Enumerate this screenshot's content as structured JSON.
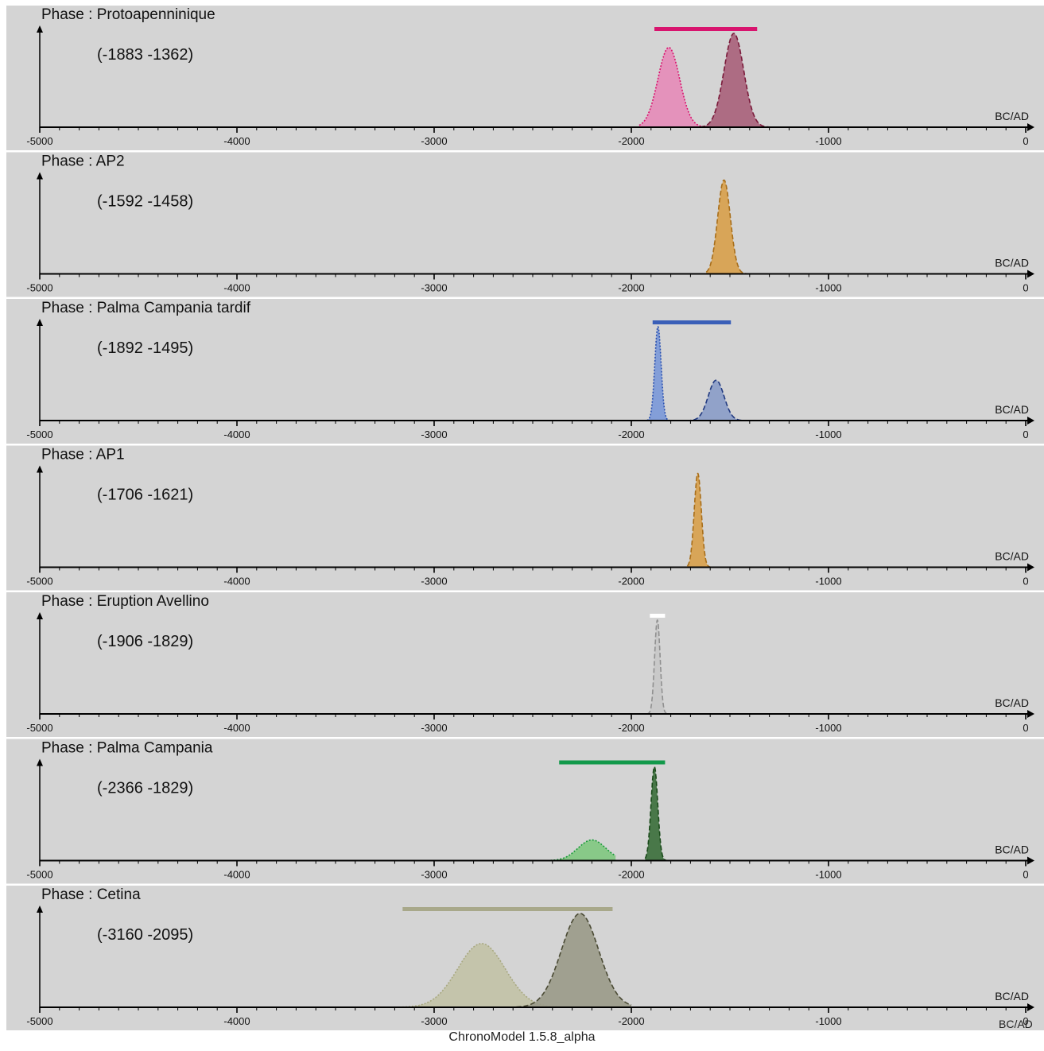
{
  "app_footer": "ChronoModel 1.5.8_alpha",
  "bottom_unit_label": "BC/AD",
  "chart_data": [
    {
      "type": "area",
      "title": "Phase : Protoapenninique",
      "interval_label": "(-1883 -1362)",
      "interval": [
        -1883,
        -1362
      ],
      "unit_label": "BC/AD",
      "xlim": [
        -5000,
        0
      ],
      "xticks": [
        -5000,
        -4000,
        -3000,
        -2000,
        -1000,
        0
      ],
      "bar_color": "#d8146e",
      "series": [
        {
          "role": "begin",
          "style": "dotted",
          "fill": "#e58bb8",
          "stroke": "#d8146e",
          "mean": -1810,
          "sd": 55,
          "height": 0.85,
          "range": [
            -1960,
            -1630
          ]
        },
        {
          "role": "end",
          "style": "dashed",
          "fill": "#a8607a",
          "stroke": "#7a1a3a",
          "mean": -1480,
          "sd": 50,
          "height": 1.0,
          "range": [
            -1650,
            -1100
          ]
        }
      ]
    },
    {
      "type": "area",
      "title": "Phase : AP2",
      "interval_label": "(-1592 -1458)",
      "interval": [
        -1592,
        -1458
      ],
      "unit_label": "BC/AD",
      "xlim": [
        -5000,
        0
      ],
      "xticks": [
        -5000,
        -4000,
        -3000,
        -2000,
        -1000,
        0
      ],
      "bar_color": null,
      "series": [
        {
          "role": "single",
          "style": "dashed",
          "fill": "#d8a04a",
          "stroke": "#a86e1a",
          "mean": -1530,
          "sd": 32,
          "height": 1.0,
          "range": [
            -1620,
            -1380
          ]
        }
      ]
    },
    {
      "type": "area",
      "title": "Phase : Palma Campania tardif",
      "interval_label": "(-1892 -1495)",
      "interval": [
        -1892,
        -1495
      ],
      "unit_label": "BC/AD",
      "xlim": [
        -5000,
        0
      ],
      "xticks": [
        -5000,
        -4000,
        -3000,
        -2000,
        -1000,
        0
      ],
      "bar_color": "#3a5fb8",
      "series": [
        {
          "role": "begin",
          "style": "dotted",
          "fill": "#7a98d8",
          "stroke": "#2a50b0",
          "mean": -1865,
          "sd": 16,
          "height": 1.0,
          "range": [
            -1920,
            -1810
          ]
        },
        {
          "role": "end",
          "style": "dashed",
          "fill": "#8a9cc8",
          "stroke": "#223a80",
          "mean": -1570,
          "sd": 40,
          "height": 0.43,
          "range": [
            -1720,
            -1380
          ]
        }
      ]
    },
    {
      "type": "area",
      "title": "Phase : AP1",
      "interval_label": "(-1706 -1621)",
      "interval": [
        -1706,
        -1621
      ],
      "unit_label": "BC/AD",
      "xlim": [
        -5000,
        0
      ],
      "xticks": [
        -5000,
        -4000,
        -3000,
        -2000,
        -1000,
        0
      ],
      "bar_color": null,
      "series": [
        {
          "role": "single",
          "style": "dashed",
          "fill": "#d8a04a",
          "stroke": "#a86e1a",
          "mean": -1663,
          "sd": 18,
          "height": 1.0,
          "range": [
            -1750,
            -1580
          ]
        }
      ]
    },
    {
      "type": "area",
      "title": "Phase : Eruption Avellino",
      "interval_label": "(-1906 -1829)",
      "interval": [
        -1906,
        -1829
      ],
      "unit_label": "BC/AD",
      "xlim": [
        -5000,
        0
      ],
      "xticks": [
        -5000,
        -4000,
        -3000,
        -2000,
        -1000,
        0
      ],
      "bar_color": "#ffffff",
      "series": [
        {
          "role": "single",
          "style": "dashed",
          "fill": "#c8c8c8",
          "stroke": "#909090",
          "mean": -1868,
          "sd": 14,
          "height": 1.0,
          "range": [
            -1920,
            -1810
          ]
        }
      ]
    },
    {
      "type": "area",
      "title": "Phase : Palma Campania",
      "interval_label": "(-2366  -1829)",
      "interval": [
        -2366,
        -1829
      ],
      "unit_label": "BC/AD",
      "xlim": [
        -5000,
        0
      ],
      "xticks": [
        -5000,
        -4000,
        -3000,
        -2000,
        -1000,
        0
      ],
      "bar_color": "#12994a",
      "series": [
        {
          "role": "begin",
          "style": "dotted",
          "fill": "#80c880",
          "stroke": "#1a9a3a",
          "mean": -2200,
          "sd": 70,
          "height": 0.22,
          "range": [
            -2700,
            -2080
          ]
        },
        {
          "role": "end",
          "style": "dashed",
          "fill": "#3a6e3a",
          "stroke": "#1a4a1a",
          "mean": -1883,
          "sd": 17,
          "height": 1.0,
          "range": [
            -1930,
            -1800
          ]
        }
      ]
    },
    {
      "type": "area",
      "title": "Phase : Cetina",
      "interval_label": "(-3160 -2095)",
      "interval": [
        -3160,
        -2095
      ],
      "unit_label": "BC/AD",
      "xlim": [
        -5000,
        0
      ],
      "xticks": [
        -5000,
        -4000,
        -3000,
        -2000,
        -1000,
        0
      ],
      "bar_color": "#a8a88a",
      "series": [
        {
          "role": "begin",
          "style": "dotted",
          "fill": "#c2c2a6",
          "stroke": "#a8a880",
          "mean": -2760,
          "sd": 120,
          "height": 0.68,
          "range": [
            -5000,
            -2000
          ]
        },
        {
          "role": "end",
          "style": "dashed",
          "fill": "#9a9a88",
          "stroke": "#4a4a34",
          "mean": -2260,
          "sd": 95,
          "height": 1.0,
          "range": [
            -2800,
            -2000
          ]
        }
      ]
    }
  ]
}
